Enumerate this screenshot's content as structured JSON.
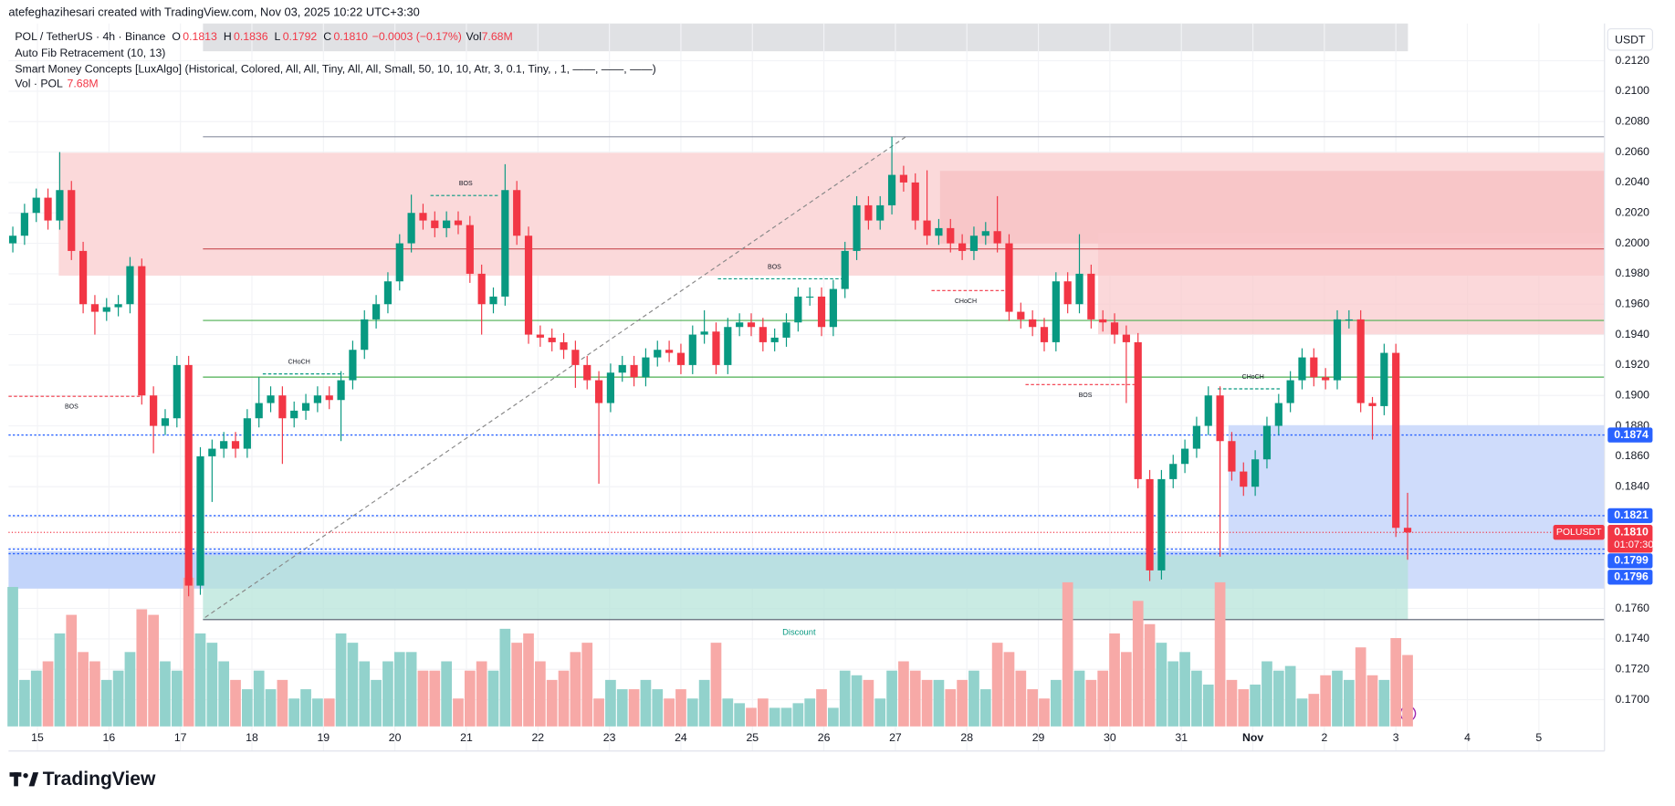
{
  "header": {
    "credit": "atefeghazihesari created with TradingView.com, Nov 03, 2025 10:22 UTC+3:30",
    "symbol": "POL / TetherUS · 4h · Binance",
    "ohlc": [
      {
        "k": "O",
        "v": "0.1813"
      },
      {
        "k": "H",
        "v": "0.1836"
      },
      {
        "k": "L",
        "v": "0.1792"
      },
      {
        "k": "C",
        "v": "0.1810"
      }
    ],
    "change": "−0.0003 (−0.17%)",
    "vol_key": "Vol",
    "vol_value": "7.68M",
    "indicators": [
      "Auto Fib Retracement (10, 13)",
      "Smart Money Concepts [LuxAlgo] (Historical, Colored, All, All, Tiny, All, All, Small, 50, 10, 10, Atr, 3, 0.1, Tiny, , 1, ——, ——, ——)"
    ],
    "vol_label": "Vol · POL",
    "vol_label_value": "7.68M"
  },
  "chart_data": {
    "type": "candlestick",
    "currency": "USDT",
    "open": [
      0.2,
      0.2005,
      0.202,
      0.203,
      0.2015,
      0.2035,
      0.1995,
      0.196,
      0.1955,
      0.1958,
      0.196,
      0.1985,
      0.19,
      0.188,
      0.1885,
      0.192,
      0.1775,
      0.186,
      0.1865,
      0.187,
      0.1865,
      0.1885,
      0.1895,
      0.19,
      0.1885,
      0.189,
      0.1895,
      0.19,
      0.1897,
      0.191,
      0.193,
      0.195,
      0.196,
      0.1975,
      0.2,
      0.202,
      0.2015,
      0.201,
      0.2015,
      0.2012,
      0.198,
      0.196,
      0.1965,
      0.2035,
      0.2005,
      0.194,
      0.1938,
      0.1935,
      0.193,
      0.192,
      0.191,
      0.1895,
      0.1915,
      0.192,
      0.1912,
      0.1925,
      0.193,
      0.1928,
      0.192,
      0.194,
      0.1942,
      0.192,
      0.1945,
      0.1948,
      0.1945,
      0.1935,
      0.1938,
      0.1948,
      0.1965,
      0.1965,
      0.1945,
      0.197,
      0.1995,
      0.2025,
      0.2015,
      0.2025,
      0.2045,
      0.204,
      0.2015,
      0.2005,
      0.201,
      0.2,
      0.1995,
      0.2005,
      0.2008,
      0.2,
      0.1955,
      0.195,
      0.1945,
      0.1935,
      0.1975,
      0.196,
      0.198,
      0.195,
      0.1948,
      0.194,
      0.1935,
      0.1845,
      0.1785,
      0.1845,
      0.1855,
      0.1865,
      0.188,
      0.19,
      0.187,
      0.185,
      0.184,
      0.1858,
      0.188,
      0.1895,
      0.191,
      0.1925,
      0.1912,
      0.191,
      0.195,
      0.195,
      0.1895,
      0.1893,
      0.1928,
      0.1813
    ],
    "high": [
      0.2011,
      0.2026,
      0.2036,
      0.2036,
      0.206,
      0.2041,
      0.2001,
      0.1966,
      0.1964,
      0.1966,
      0.1991,
      0.199,
      0.1906,
      0.1891,
      0.1926,
      0.1926,
      0.1866,
      0.1871,
      0.1876,
      0.1876,
      0.1891,
      0.1912,
      0.1906,
      0.1906,
      0.1896,
      0.1901,
      0.1906,
      0.1906,
      0.1916,
      0.1936,
      0.1956,
      0.1966,
      0.1981,
      0.2006,
      0.2032,
      0.2026,
      0.2021,
      0.2021,
      0.2021,
      0.2018,
      0.1986,
      0.1971,
      0.2052,
      0.2041,
      0.2011,
      0.1946,
      0.1944,
      0.1941,
      0.1936,
      0.1926,
      0.1916,
      0.1921,
      0.1926,
      0.1926,
      0.1931,
      0.1936,
      0.1936,
      0.1934,
      0.1946,
      0.1956,
      0.1948,
      0.1951,
      0.1954,
      0.1954,
      0.1951,
      0.1944,
      0.1954,
      0.1971,
      0.1971,
      0.1971,
      0.1976,
      0.2001,
      0.2031,
      0.2031,
      0.2031,
      0.207,
      0.2051,
      0.2046,
      0.2048,
      0.2016,
      0.2016,
      0.2006,
      0.2011,
      0.2014,
      0.2031,
      0.2006,
      0.1961,
      0.1956,
      0.1951,
      0.1981,
      0.1981,
      0.2006,
      0.1986,
      0.1956,
      0.1954,
      0.1946,
      0.1941,
      0.1851,
      0.1851,
      0.1861,
      0.1871,
      0.1886,
      0.1906,
      0.1906,
      0.1876,
      0.1856,
      0.1864,
      0.1886,
      0.1901,
      0.1916,
      0.1931,
      0.1931,
      0.1918,
      0.1956,
      0.1956,
      0.1956,
      0.1899,
      0.1934,
      0.1934,
      0.1836
    ],
    "low": [
      0.1994,
      0.1999,
      0.2014,
      0.2009,
      0.2009,
      0.1989,
      0.1954,
      0.194,
      0.1949,
      0.1952,
      0.1954,
      0.1894,
      0.1862,
      0.1874,
      0.1879,
      0.1768,
      0.1769,
      0.183,
      0.1859,
      0.1859,
      0.1859,
      0.1879,
      0.1889,
      0.1855,
      0.1879,
      0.1884,
      0.1889,
      0.1891,
      0.187,
      0.1904,
      0.1924,
      0.1944,
      0.1954,
      0.1969,
      0.1994,
      0.2009,
      0.2004,
      0.2004,
      0.2006,
      0.1974,
      0.194,
      0.1954,
      0.1959,
      0.1999,
      0.1934,
      0.1932,
      0.1929,
      0.1924,
      0.1905,
      0.1904,
      0.1842,
      0.1889,
      0.1909,
      0.1906,
      0.1906,
      0.1919,
      0.1922,
      0.1914,
      0.1914,
      0.1934,
      0.1914,
      0.1914,
      0.1939,
      0.1939,
      0.1929,
      0.1929,
      0.1932,
      0.1942,
      0.1959,
      0.1939,
      0.1939,
      0.1964,
      0.1989,
      0.2009,
      0.2009,
      0.2019,
      0.2034,
      0.2009,
      0.1999,
      0.1999,
      0.1994,
      0.1989,
      0.1989,
      0.1999,
      0.1994,
      0.1949,
      0.1944,
      0.1939,
      0.1929,
      0.1929,
      0.1954,
      0.1954,
      0.1944,
      0.1942,
      0.1934,
      0.1895,
      0.1839,
      0.1778,
      0.1779,
      0.1839,
      0.1849,
      0.1859,
      0.1874,
      0.1794,
      0.1844,
      0.1834,
      0.1834,
      0.1852,
      0.1874,
      0.1889,
      0.1904,
      0.1906,
      0.1904,
      0.1904,
      0.1944,
      0.1889,
      0.1871,
      0.1887,
      0.1807,
      0.1792
    ],
    "close": [
      0.2005,
      0.202,
      0.203,
      0.2015,
      0.2035,
      0.1995,
      0.196,
      0.1955,
      0.1958,
      0.196,
      0.1985,
      0.19,
      0.188,
      0.1885,
      0.192,
      0.1775,
      0.186,
      0.1865,
      0.187,
      0.1865,
      0.1885,
      0.1895,
      0.19,
      0.1885,
      0.189,
      0.1895,
      0.19,
      0.1897,
      0.191,
      0.193,
      0.195,
      0.196,
      0.1975,
      0.2,
      0.202,
      0.2015,
      0.201,
      0.2015,
      0.2012,
      0.198,
      0.196,
      0.1965,
      0.2035,
      0.2005,
      0.194,
      0.1938,
      0.1935,
      0.193,
      0.192,
      0.191,
      0.1895,
      0.1915,
      0.192,
      0.1912,
      0.1925,
      0.193,
      0.1928,
      0.192,
      0.194,
      0.1942,
      0.192,
      0.1945,
      0.1948,
      0.1945,
      0.1935,
      0.1938,
      0.1948,
      0.1965,
      0.1965,
      0.1945,
      0.197,
      0.1995,
      0.2025,
      0.2015,
      0.2025,
      0.2045,
      0.204,
      0.2015,
      0.2005,
      0.201,
      0.2,
      0.1995,
      0.2005,
      0.2008,
      0.2,
      0.1955,
      0.195,
      0.1945,
      0.1935,
      0.1975,
      0.196,
      0.198,
      0.195,
      0.1948,
      0.194,
      0.1935,
      0.1845,
      0.1785,
      0.1845,
      0.1855,
      0.1865,
      0.188,
      0.19,
      0.187,
      0.185,
      0.184,
      0.1858,
      0.188,
      0.1895,
      0.191,
      0.1925,
      0.1912,
      0.191,
      0.195,
      0.195,
      0.1895,
      0.1893,
      0.1928,
      0.1813,
      0.181
    ],
    "volume": [
      15,
      5,
      6,
      7,
      10,
      12,
      8,
      7,
      5,
      6,
      8,
      12.6,
      12,
      7,
      6,
      16,
      10,
      9,
      7,
      5,
      4,
      6,
      4,
      5,
      3,
      4,
      3,
      3,
      10,
      9,
      7,
      5,
      7,
      8,
      8,
      6,
      6,
      7,
      3,
      6,
      7,
      6,
      10.5,
      9,
      10,
      7,
      5,
      6,
      8,
      9,
      3,
      5,
      4,
      4,
      5,
      4,
      3,
      4,
      3,
      5,
      9,
      3,
      2.5,
      2,
      3,
      2,
      2,
      2.5,
      3,
      4,
      2,
      6,
      5.5,
      5,
      3,
      6,
      7,
      6,
      5,
      5,
      4,
      5,
      6,
      4,
      9,
      8,
      6,
      4,
      3,
      5,
      15.5,
      6,
      5,
      6,
      10,
      8,
      13.5,
      11,
      9,
      7,
      8,
      6,
      4.5,
      15.5,
      5,
      4,
      4.5,
      7,
      6,
      6.5,
      3,
      3.5,
      5.5,
      6,
      5,
      8.5,
      5.5,
      5,
      9.5,
      7.68
    ],
    "up_color": "#089981",
    "down_color": "#f23645",
    "vol_up_color": "#92d2cc",
    "vol_down_color": "#f7a9a7",
    "xlim": [
      -0.365,
      135.8
    ],
    "xticks": [
      {
        "value": 2.1,
        "label": "15"
      },
      {
        "value": 8.2,
        "label": "16"
      },
      {
        "value": 14.3,
        "label": "17"
      },
      {
        "value": 20.4,
        "label": "18"
      },
      {
        "value": 26.5,
        "label": "19"
      },
      {
        "value": 32.6,
        "label": "20"
      },
      {
        "value": 38.7,
        "label": "21"
      },
      {
        "value": 44.8,
        "label": "22"
      },
      {
        "value": 50.9,
        "label": "23"
      },
      {
        "value": 57,
        "label": "24"
      },
      {
        "value": 63.1,
        "label": "25"
      },
      {
        "value": 69.2,
        "label": "26"
      },
      {
        "value": 75.3,
        "label": "27"
      },
      {
        "value": 81.4,
        "label": "28"
      },
      {
        "value": 87.5,
        "label": "29"
      },
      {
        "value": 93.6,
        "label": "30"
      },
      {
        "value": 99.7,
        "label": "31"
      },
      {
        "value": 105.8,
        "label": "Nov"
      },
      {
        "value": 111.9,
        "label": "2"
      },
      {
        "value": 118,
        "label": "3"
      },
      {
        "value": 124.1,
        "label": "4"
      },
      {
        "value": 130.2,
        "label": "5"
      }
    ],
    "ylim": [
      0.16663,
      0.21445
    ],
    "yticks": [
      {
        "value": 0.212,
        "label": "0.2120"
      },
      {
        "value": 0.21,
        "label": "0.2100"
      },
      {
        "value": 0.208,
        "label": "0.2080"
      },
      {
        "value": 0.206,
        "label": "0.2060"
      },
      {
        "value": 0.204,
        "label": "0.2040"
      },
      {
        "value": 0.202,
        "label": "0.2020"
      },
      {
        "value": 0.2,
        "label": "0.2000"
      },
      {
        "value": 0.198,
        "label": "0.1980"
      },
      {
        "value": 0.196,
        "label": "0.1960"
      },
      {
        "value": 0.194,
        "label": "0.1940"
      },
      {
        "value": 0.192,
        "label": "0.1920"
      },
      {
        "value": 0.19,
        "label": "0.1900"
      },
      {
        "value": 0.188,
        "label": "0.1880"
      },
      {
        "value": 0.186,
        "label": "0.1860"
      },
      {
        "value": 0.184,
        "label": "0.1840"
      },
      {
        "value": 0.182,
        "label": "0.1820"
      },
      {
        "value": 0.18,
        "label": "0.1800"
      },
      {
        "value": 0.178,
        "label": "0.1780"
      },
      {
        "value": 0.176,
        "label": "0.1760"
      },
      {
        "value": 0.174,
        "label": "0.1740"
      },
      {
        "value": 0.172,
        "label": "0.1720"
      },
      {
        "value": 0.17,
        "label": "0.1700"
      }
    ],
    "vol_ylim": [
      0,
      75.6
    ],
    "grid": true,
    "price_tags": [
      0.1874,
      0.1821,
      0.1799,
      0.1796
    ],
    "current": {
      "symbol": "POLUSDT",
      "value": 0.181,
      "label": "0.1810",
      "countdown": "01:07:30"
    },
    "structure_labels": [
      "BOS",
      "CHoCH",
      "BOS",
      "BOS",
      "CHoCH",
      "BOS",
      "CHoCH"
    ],
    "zone_label": "Discount"
  },
  "footer": "TradingView"
}
